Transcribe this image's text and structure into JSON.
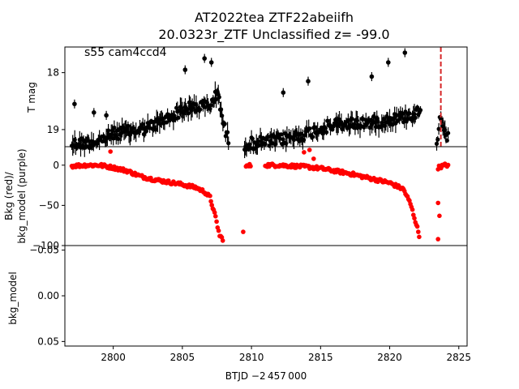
{
  "figure": {
    "title_line1": "AT2022tea  ZTF22abeiifh",
    "title_line2": "20.0323r_ZTF Unclassified z= -99.0"
  },
  "chart_data": [
    {
      "type": "scatter",
      "panel": "top",
      "ylabel": "T mag",
      "y_inverted": true,
      "ylim": [
        19.3,
        17.55
      ],
      "xlim": [
        2796.5,
        2825.6
      ],
      "yticks": [
        "18",
        "19"
      ],
      "annotation": "s55 cam4ccd4",
      "marker_line": {
        "x": 2823.7,
        "color": "#d62728",
        "style": "dashed"
      },
      "series": [
        {
          "color": "#000000",
          "segments": [
            {
              "x": [
                2797.0,
                2797.5,
                2798.0,
                2799.0,
                2800.0,
                2801.0,
                2802.0,
                2803.0,
                2804.0,
                2805.0,
                2806.0,
                2807.0,
                2807.6,
                2808.0,
                2808.4
              ],
              "y": [
                19.25,
                19.24,
                19.23,
                19.2,
                19.07,
                19.04,
                19.0,
                18.92,
                18.8,
                18.65,
                18.6,
                18.57,
                18.35,
                18.95,
                19.22
              ]
            },
            {
              "x": [
                2809.5,
                2811.0,
                2812.0,
                2813.0,
                2814.0,
                2815.0,
                2816.0,
                2817.0,
                2818.0,
                2819.0,
                2820.0,
                2821.0,
                2822.0,
                2822.3
              ],
              "y": [
                19.25,
                19.22,
                19.18,
                19.13,
                19.07,
                18.98,
                18.92,
                18.9,
                18.88,
                18.87,
                18.82,
                18.78,
                18.7,
                18.6
              ]
            },
            {
              "x": [
                2823.4,
                2823.7,
                2824.0,
                2824.3
              ],
              "y": [
                19.2,
                18.72,
                19.0,
                19.22
              ]
            }
          ],
          "outliers": [
            {
              "x": 2797.2,
              "y": 18.55
            },
            {
              "x": 2798.6,
              "y": 18.7
            },
            {
              "x": 2799.5,
              "y": 18.75
            },
            {
              "x": 2805.2,
              "y": 17.95
            },
            {
              "x": 2806.6,
              "y": 17.75
            },
            {
              "x": 2807.1,
              "y": 17.82
            },
            {
              "x": 2812.3,
              "y": 18.35
            },
            {
              "x": 2814.1,
              "y": 18.15
            },
            {
              "x": 2818.7,
              "y": 18.07
            },
            {
              "x": 2819.9,
              "y": 17.82
            },
            {
              "x": 2821.1,
              "y": 17.65
            }
          ]
        }
      ]
    },
    {
      "type": "scatter",
      "panel": "middle",
      "ylabel": "Bkg (red)/\nbkg_model (purple)",
      "ylim": [
        -100,
        23
      ],
      "xlim": [
        2796.5,
        2825.6
      ],
      "yticks": [
        "0",
        "−50",
        "−100"
      ],
      "yticks_values": [
        0,
        -50,
        -100
      ],
      "series": [
        {
          "color": "#ff0000",
          "segments": [
            {
              "x": [
                2797.0,
                2798.0,
                2799.0,
                2800.0,
                2801.0,
                2802.0,
                2803.0,
                2804.0,
                2805.0,
                2806.0,
                2806.6,
                2807.0,
                2807.4,
                2807.7,
                2808.0
              ],
              "y": [
                -1,
                0,
                0,
                -3,
                -7,
                -14,
                -18,
                -21,
                -24,
                -28,
                -33,
                -40,
                -65,
                -88,
                -93
              ]
            },
            {
              "x": [
                2809.6,
                2810.0
              ],
              "y": [
                -2,
                0
              ]
            },
            {
              "x": [
                2811.0,
                2812.0,
                2813.0,
                2814.0,
                2815.0,
                2816.0,
                2817.0,
                2818.0,
                2819.0,
                2820.0,
                2821.0,
                2821.5,
                2822.0,
                2822.2
              ],
              "y": [
                0,
                0,
                -1,
                -2,
                -4,
                -7,
                -10,
                -14,
                -18,
                -22,
                -30,
                -48,
                -78,
                -93
              ]
            },
            {
              "x": [
                2823.5,
                2824.0,
                2824.3
              ],
              "y": [
                -3,
                0,
                0
              ]
            }
          ],
          "outliers": [
            {
              "x": 2799.8,
              "y": 17
            },
            {
              "x": 2809.4,
              "y": -83
            },
            {
              "x": 2813.8,
              "y": 16
            },
            {
              "x": 2814.2,
              "y": 19
            },
            {
              "x": 2823.5,
              "y": -47
            },
            {
              "x": 2823.6,
              "y": -63
            },
            {
              "x": 2823.5,
              "y": -92
            },
            {
              "x": 2814.5,
              "y": 8
            }
          ]
        }
      ]
    },
    {
      "type": "scatter",
      "panel": "bottom",
      "ylabel": "bkg_model",
      "y_inverted": true,
      "ylim": [
        0.055,
        -0.055
      ],
      "xlim": [
        2796.5,
        2825.6
      ],
      "yticks": [
        "−0.05",
        "0.00",
        "0.05"
      ],
      "yticks_values": [
        -0.05,
        0.0,
        0.05
      ],
      "xticks": [
        "2800",
        "2805",
        "2810",
        "2815",
        "2820",
        "2825"
      ],
      "xticks_values": [
        2800,
        2805,
        2810,
        2815,
        2820,
        2825
      ],
      "xlabel": "BTJD −2 457 000",
      "series": []
    }
  ]
}
